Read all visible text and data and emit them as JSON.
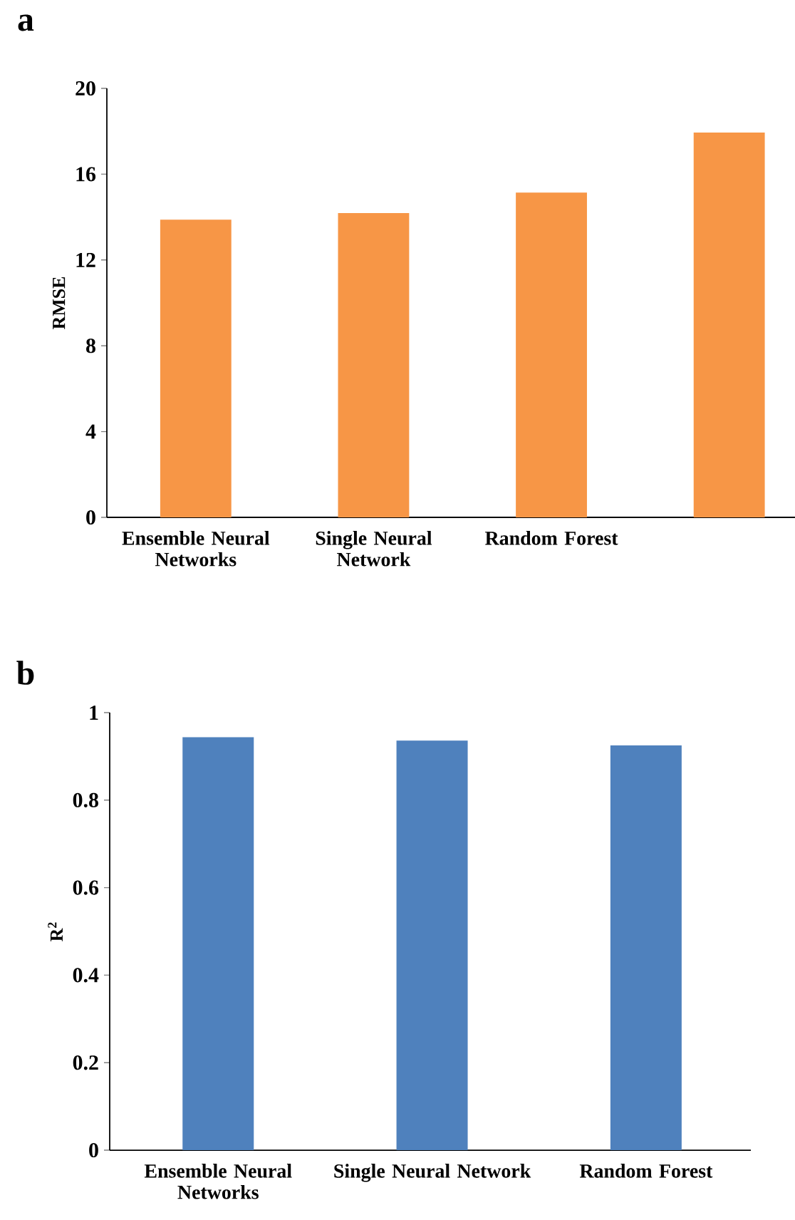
{
  "chart_data": [
    {
      "type": "bar",
      "title": "a",
      "ylabel": "RMSE",
      "categories": [
        "Ensemble Neural Networks",
        "Single Neural Network",
        "Random Forest",
        null
      ],
      "values": [
        13.88,
        14.19,
        15.14,
        17.94
      ],
      "color": "#f79646",
      "ylim": [
        0,
        20
      ],
      "yticks": [
        0,
        4,
        8,
        12,
        16,
        20
      ]
    },
    {
      "type": "bar",
      "title": "b",
      "ylabel": "R$^{2}$",
      "categories": [
        "Ensemble Neural Networks",
        "Single Neural Network",
        "Random Forest"
      ],
      "values": [
        0.944,
        0.936,
        0.925
      ],
      "color": "#4f81bd",
      "ylim": [
        0,
        1
      ],
      "yticks": [
        0,
        0.2,
        0.4,
        0.6,
        0.8,
        1
      ]
    }
  ]
}
